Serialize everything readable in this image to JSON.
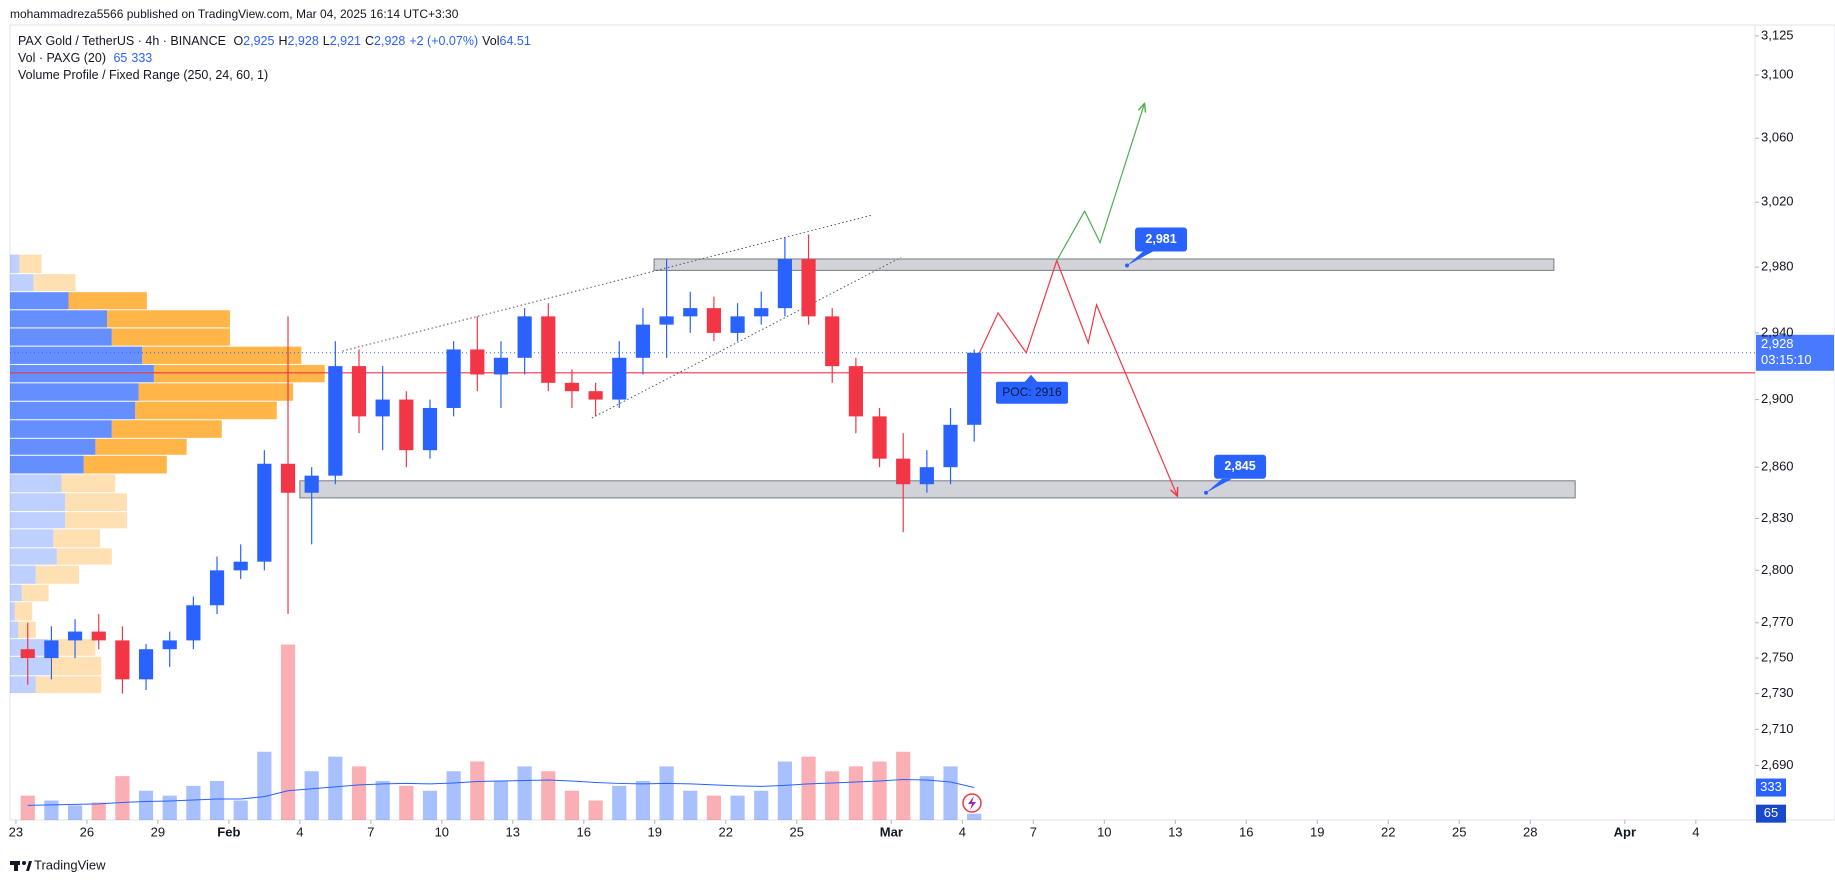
{
  "header": {
    "publisher": "mohammadreza5566 published on TradingView.com, Mar 04, 2025 16:14 UTC+3:30"
  },
  "chart_data": {
    "type": "candlestick",
    "title": "PAX Gold / TetherUS · 4h · BINANCE",
    "ohlc_legend": [
      {
        "label": "O",
        "value": "2,925"
      },
      {
        "label": "H",
        "value": "2,928"
      },
      {
        "label": "L",
        "value": "2,921"
      },
      {
        "label": "C",
        "value": "2,928"
      }
    ],
    "change": "+2 (+0.07%)",
    "volume_legend": {
      "label": "Vol",
      "value": "64.51"
    },
    "indicators": [
      {
        "name": "Vol · PAXG (20)",
        "values": [
          "65",
          "333"
        ]
      },
      {
        "name": "Volume Profile / Fixed Range (250, 24, 60, 1)"
      }
    ],
    "x": [
      0,
      1,
      2,
      3,
      4,
      5,
      6,
      7,
      8,
      9,
      10,
      11,
      12,
      13,
      14,
      15,
      16,
      17,
      18,
      19,
      20,
      21,
      22,
      23,
      24,
      25,
      26,
      27,
      28,
      29,
      30,
      31,
      32,
      33,
      34,
      35,
      36,
      37,
      38,
      39,
      40
    ],
    "open": [
      2755,
      2750,
      2760,
      2765,
      2760,
      2738,
      2755,
      2760,
      2780,
      2800,
      2805,
      2862,
      2845,
      2855,
      2920,
      2890,
      2900,
      2870,
      2895,
      2930,
      2915,
      2925,
      2950,
      2910,
      2905,
      2900,
      2925,
      2945,
      2950,
      2955,
      2940,
      2950,
      2955,
      2985,
      2950,
      2920,
      2890,
      2865,
      2850,
      2860,
      2885
    ],
    "high": [
      2770,
      2768,
      2772,
      2775,
      2768,
      2758,
      2765,
      2785,
      2808,
      2815,
      2870,
      2950,
      2860,
      2935,
      2930,
      2920,
      2905,
      2900,
      2935,
      2950,
      2935,
      2955,
      2958,
      2918,
      2910,
      2935,
      2955,
      2985,
      2965,
      2962,
      2958,
      2965,
      2998,
      3000,
      2955,
      2925,
      2895,
      2880,
      2870,
      2895,
      2930
    ],
    "low": [
      2735,
      2738,
      2750,
      2755,
      2730,
      2732,
      2745,
      2755,
      2775,
      2795,
      2800,
      2775,
      2815,
      2850,
      2880,
      2870,
      2860,
      2865,
      2890,
      2905,
      2895,
      2915,
      2905,
      2895,
      2890,
      2895,
      2915,
      2925,
      2940,
      2935,
      2935,
      2945,
      2950,
      2945,
      2910,
      2880,
      2860,
      2822,
      2845,
      2850,
      2875
    ],
    "close": [
      2750,
      2760,
      2765,
      2760,
      2738,
      2755,
      2760,
      2780,
      2800,
      2805,
      2862,
      2845,
      2855,
      2920,
      2890,
      2900,
      2870,
      2895,
      2930,
      2915,
      2925,
      2950,
      2910,
      2905,
      2900,
      2925,
      2945,
      2950,
      2955,
      2940,
      2950,
      2955,
      2985,
      2950,
      2920,
      2890,
      2865,
      2850,
      2860,
      2885,
      2928
    ],
    "up_color": "#2962ff",
    "down_color": "#f23645",
    "grid": false,
    "log_scale": true,
    "xlim": [
      -0.25,
      73.5
    ],
    "xticks": [
      {
        "value": 0,
        "label": "23"
      },
      {
        "value": 3,
        "label": "26"
      },
      {
        "value": 6,
        "label": "29"
      },
      {
        "value": 9,
        "label": "Feb"
      },
      {
        "value": 12,
        "label": "4"
      },
      {
        "value": 15,
        "label": "7"
      },
      {
        "value": 18,
        "label": "10"
      },
      {
        "value": 21,
        "label": "13"
      },
      {
        "value": 24,
        "label": "16"
      },
      {
        "value": 27,
        "label": "19"
      },
      {
        "value": 30,
        "label": "22"
      },
      {
        "value": 33,
        "label": "25"
      },
      {
        "value": 37,
        "label": "Mar"
      },
      {
        "value": 40,
        "label": "4"
      },
      {
        "value": 43,
        "label": "7"
      },
      {
        "value": 46,
        "label": "10"
      },
      {
        "value": 49,
        "label": "13"
      },
      {
        "value": 52,
        "label": "16"
      },
      {
        "value": 55,
        "label": "19"
      },
      {
        "value": 58,
        "label": "22"
      },
      {
        "value": 61,
        "label": "25"
      },
      {
        "value": 64,
        "label": "28"
      },
      {
        "value": 68,
        "label": "Apr"
      },
      {
        "value": 71,
        "label": "4"
      }
    ],
    "ylim": [
      2660,
      3132
    ],
    "yticks": [
      {
        "value": 3125,
        "label": "3,125"
      },
      {
        "value": 3100,
        "label": "3,100"
      },
      {
        "value": 3060,
        "label": "3,060"
      },
      {
        "value": 3020,
        "label": "3,020"
      },
      {
        "value": 2980,
        "label": "2,980"
      },
      {
        "value": 2940,
        "label": "2,940"
      },
      {
        "value": 2900,
        "label": "2,900"
      },
      {
        "value": 2860,
        "label": "2,860"
      },
      {
        "value": 2830,
        "label": "2,830"
      },
      {
        "value": 2800,
        "label": "2,800"
      },
      {
        "value": 2770,
        "label": "2,770"
      },
      {
        "value": 2750,
        "label": "2,750"
      },
      {
        "value": 2730,
        "label": "2,730"
      },
      {
        "value": 2710,
        "label": "2,710"
      },
      {
        "value": 2690,
        "label": "2,690"
      }
    ],
    "volume": {
      "values": [
        250,
        200,
        150,
        180,
        450,
        300,
        250,
        350,
        400,
        200,
        700,
        1800,
        500,
        650,
        550,
        400,
        350,
        300,
        500,
        600,
        400,
        550,
        500,
        300,
        200,
        350,
        400,
        550,
        300,
        250,
        250,
        300,
        600,
        650,
        500,
        550,
        600,
        700,
        450,
        550,
        65
      ],
      "ma": [
        150,
        155,
        160,
        165,
        180,
        190,
        195,
        205,
        215,
        215,
        240,
        300,
        320,
        340,
        360,
        370,
        375,
        370,
        380,
        395,
        400,
        405,
        410,
        400,
        385,
        375,
        370,
        375,
        370,
        360,
        350,
        345,
        355,
        370,
        380,
        390,
        400,
        415,
        410,
        390,
        333
      ],
      "lim": [
        0,
        2000
      ],
      "ma_color": "#2962ff",
      "last_labels": [
        {
          "value": 333,
          "label": "333"
        },
        {
          "value": 65,
          "label": "65"
        }
      ]
    },
    "volume_profile": {
      "bins": [
        2730,
        2740,
        2751,
        2761,
        2771,
        2782,
        2792,
        2803,
        2813,
        2824,
        2834,
        2845,
        2856,
        2867,
        2877,
        2888,
        2899,
        2910,
        2921,
        2932,
        2943,
        2954,
        2965,
        2976,
        2988
      ],
      "up": [
        22,
        34,
        32,
        7,
        4,
        10,
        22,
        40,
        37,
        47,
        47,
        44,
        63,
        73,
        87,
        107,
        110,
        123,
        113,
        87,
        83,
        50,
        20,
        8
      ],
      "down": [
        56,
        44,
        41,
        15,
        15,
        23,
        37,
        47,
        40,
        53,
        53,
        46,
        71,
        78,
        94,
        121,
        132,
        146,
        136,
        101,
        105,
        67,
        36,
        19
      ],
      "value_area": [
        2856,
        2965
      ],
      "up_color": "#2962ff",
      "down_color": "#ff9800"
    },
    "poc": {
      "value": 2916,
      "label": "POC: 2916",
      "x": 42.9,
      "color": "#f23645"
    },
    "last_price": {
      "value": 2928,
      "label": "2,928",
      "countdown": "03:15:10"
    },
    "zones": [
      {
        "x": [
          26.97,
          65
        ],
        "y": [
          2978,
          2985
        ],
        "label": {
          "value": 2981,
          "label": "2,981"
        },
        "label_x": 46.96
      },
      {
        "x": [
          12,
          65.9
        ],
        "y": [
          2842,
          2852
        ],
        "label": {
          "value": 2845,
          "label": "2,845"
        },
        "label_x": 50.3
      }
    ],
    "trendlines": [
      {
        "x": [
          13.8,
          36.17
        ],
        "y": [
          2929,
          3012
        ]
      },
      {
        "x": [
          24.34,
          37.41
        ],
        "y": [
          2889,
          2986
        ]
      }
    ],
    "projections": [
      {
        "color": "#f23645",
        "x": [
          40.48,
          41.51,
          42.7,
          43.99,
          45.32,
          45.67,
          49.09
        ],
        "y": [
          2920.6,
          2952.1,
          2928,
          2984,
          2934,
          2957,
          2843
        ]
      },
      {
        "color": "#4caf50",
        "x": [
          43.99,
          45.17,
          45.82,
          47.7
        ],
        "y": [
          2984,
          3014.5,
          2995,
          3082
        ]
      }
    ]
  },
  "footer": {
    "brand": "TradingView"
  }
}
